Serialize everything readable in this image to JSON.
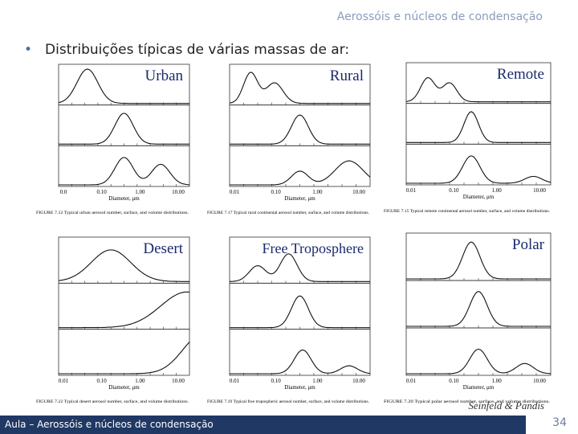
{
  "header": {
    "title": "Aerossóis e núcleos de condensação"
  },
  "bullet": "Distribuições típicas de várias massas de ar:",
  "panels": [
    {
      "label": "Urban",
      "xlabel": "Diameter, μm",
      "xticks": [
        "0.0",
        "0.10",
        "1.00",
        "10.00"
      ],
      "caption": "FIGURE 7.12 Typical urban aerosol number, surface, and volume distributions."
    },
    {
      "label": "Rural",
      "xlabel": "Diameter, μm",
      "xticks": [
        "0.01",
        "0.10",
        "1.00",
        "10.00"
      ],
      "caption": "FIGURE 7.17 Typical rural continental aerosol number, surface, and volume distributions."
    },
    {
      "label": "Remote",
      "xlabel": "Diameter, μm",
      "xticks": [
        "0.01",
        "0.10",
        "1.00",
        "10.00"
      ],
      "caption": "FIGURE 7.15 Typical remote continental aerosol number, surface, and volume distributions."
    },
    {
      "label": "Desert",
      "xlabel": "Diameter, μm",
      "xticks": [
        "0.01",
        "0.10",
        "1.00",
        "10.00"
      ],
      "caption": "FIGURE 7.22 Typical desert aerosol number, surface, and volume distributions."
    },
    {
      "label": "Free Troposphere",
      "xlabel": "Diameter, μm",
      "xticks": [
        "0.01",
        "0.10",
        "1.00",
        "10.00"
      ],
      "caption": "FIGURE 7.19 Typical free tropospheric aerosol number, surface, and volume distributions."
    },
    {
      "label": "Polar",
      "xlabel": "Diameter, μm",
      "xticks": [
        "0.01",
        "0.10",
        "1.00",
        "10.00"
      ],
      "caption": "FIGURE 7.20 Typical polar aerosol number, surface, and volume distributions."
    }
  ],
  "credit": "Seinfeld & Pandis",
  "footer": {
    "text": "Aula – Aerossóis e núcleos de condensação",
    "page": "34"
  }
}
